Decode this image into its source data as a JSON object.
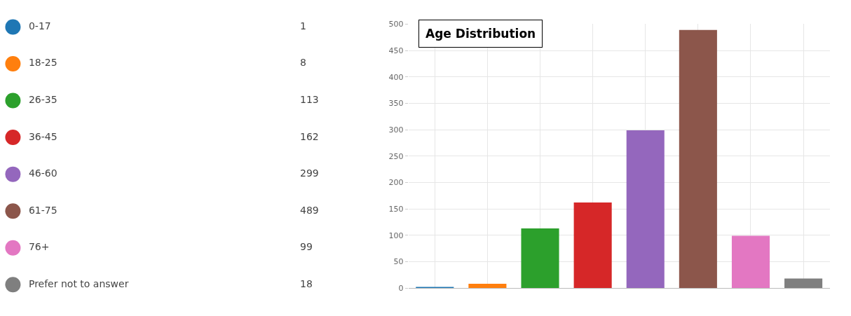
{
  "chart_data": [
    {
      "type": "other",
      "categories": [
        "0-17",
        "18-25",
        "26-35",
        "36-45",
        "46-60",
        "61-75",
        "76+",
        "Prefer not to answer"
      ],
      "values": [
        1,
        8,
        113,
        162,
        299,
        489,
        99,
        18
      ],
      "colors": [
        "#1f77b4",
        "#ff7f0e",
        "#2ca02c",
        "#d62728",
        "#9467bd",
        "#8c564b",
        "#e377c2",
        "#7f7f7f"
      ],
      "data_labels": true
    },
    {
      "type": "bar",
      "title": "Age Distribution",
      "categories": [
        null,
        null,
        null,
        null,
        null,
        null,
        null,
        null
      ],
      "values": [
        1,
        8,
        113,
        162,
        299,
        489,
        99,
        18
      ],
      "colors": [
        "#1f77b4",
        "#ff7f0e",
        "#2ca02c",
        "#d62728",
        "#9467bd",
        "#8c564b",
        "#e377c2",
        "#7f7f7f"
      ],
      "ylim": [
        0,
        500
      ],
      "yticks": [
        0,
        50,
        100,
        150,
        200,
        250,
        300,
        350,
        400,
        450,
        500
      ],
      "grid": true,
      "tick_labels": "y"
    }
  ]
}
